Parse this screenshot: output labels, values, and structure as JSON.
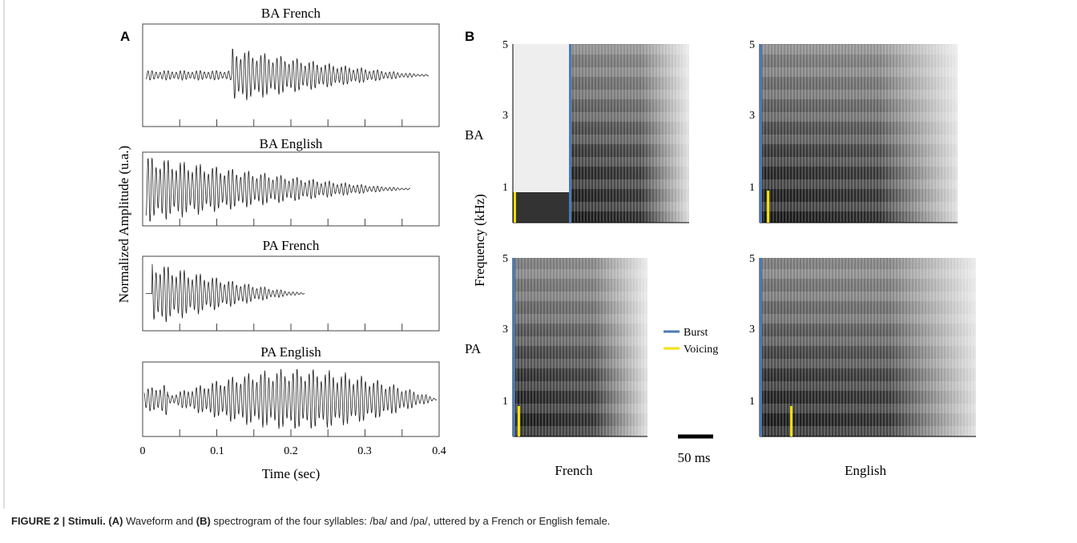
{
  "panel_a": {
    "label": "A",
    "waveforms": [
      {
        "title": "BA French"
      },
      {
        "title": "BA English"
      },
      {
        "title": "PA French"
      },
      {
        "title": "PA English"
      }
    ],
    "y_axis_label": "Normalized Amplitude (u.a.)",
    "x_axis_label": "Time (sec)",
    "x_ticks": [
      "0",
      "0.1",
      "0.2",
      "0.3",
      "0.4"
    ]
  },
  "panel_b": {
    "label": "B",
    "y_axis_label": "Frequency (kHz)",
    "rows": [
      "BA",
      "PA"
    ],
    "columns": [
      "French",
      "English"
    ],
    "y_ticks": [
      "5",
      "3",
      "1"
    ],
    "legend": [
      "Burst",
      "Voicing"
    ],
    "scale_bar": "50 ms"
  },
  "caption": {
    "figure": "FIGURE 2 | Stimuli.",
    "a": "(A)",
    "text1": "Waveform and",
    "b": "(B)",
    "text2": "spectrogram of the four syllables: /ba/ and /pa/, uttered by a French or English female."
  }
}
